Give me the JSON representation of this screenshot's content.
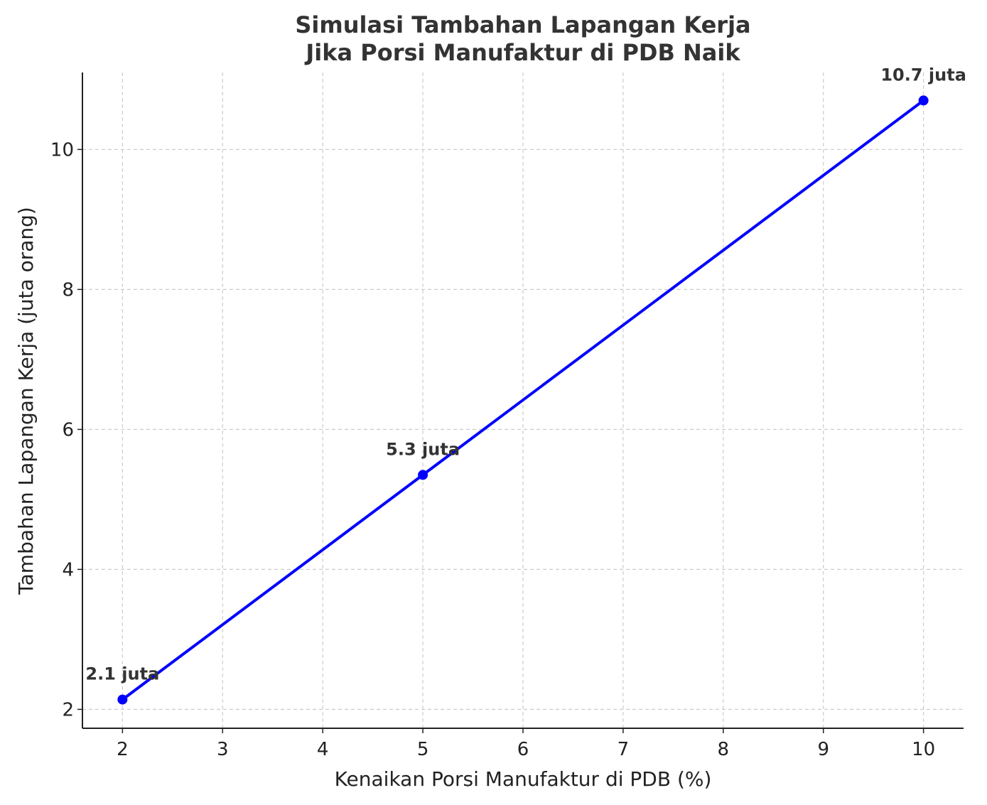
{
  "chart_data": {
    "type": "line",
    "title": [
      "Simulasi Tambahan Lapangan Kerja",
      "Jika Porsi Manufaktur di PDB Naik"
    ],
    "xlabel": "Kenaikan Porsi Manufaktur di PDB (%)",
    "ylabel": "Tambahan Lapangan Kerja (juta orang)",
    "xlim": [
      1.6,
      10.4
    ],
    "ylim": [
      1.73,
      11.1
    ],
    "xticks": [
      2,
      3,
      4,
      5,
      6,
      7,
      8,
      9,
      10
    ],
    "yticks": [
      2,
      4,
      6,
      8,
      10
    ],
    "grid": true,
    "series": [
      {
        "color": "#0000ff",
        "marker": "circle",
        "x": [
          2,
          5,
          10
        ],
        "y": [
          2.14,
          5.35,
          10.7
        ],
        "labels": [
          "2.1 juta",
          "5.3 juta",
          "10.7 juta"
        ]
      }
    ]
  }
}
